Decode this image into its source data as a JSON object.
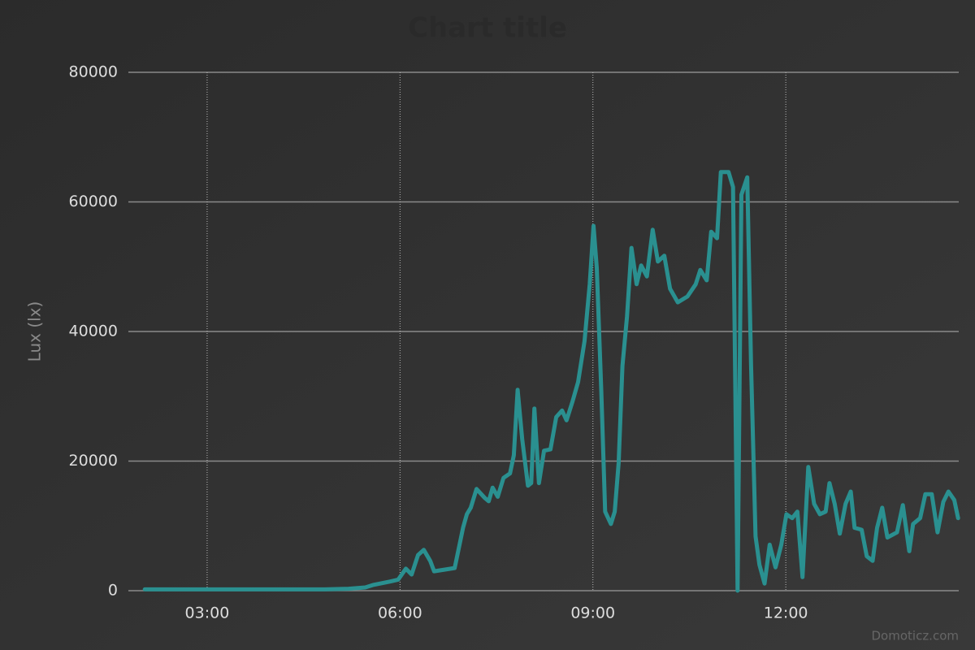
{
  "chart_data": {
    "type": "line",
    "title": "Chart title",
    "y_label": "Lux (lx)",
    "watermark": "Domoticz.com",
    "grid": true,
    "xlim": [
      1.775,
      14.69
    ],
    "xticks": [
      {
        "value": 3,
        "label": "03:00"
      },
      {
        "value": 6,
        "label": "06:00"
      },
      {
        "value": 9,
        "label": "09:00"
      },
      {
        "value": 12,
        "label": "12:00"
      }
    ],
    "ylim": [
      0,
      80000
    ],
    "yticks": [
      0,
      20000,
      40000,
      60000,
      80000
    ],
    "series": [
      {
        "name": "Lux",
        "color": "#2a9090",
        "x": [
          2.03,
          4.83,
          5.2,
          5.46,
          5.59,
          5.84,
          5.97,
          6.09,
          6.18,
          6.28,
          6.37,
          6.47,
          6.53,
          6.85,
          6.98,
          7.04,
          7.1,
          7.19,
          7.32,
          7.38,
          7.44,
          7.52,
          7.61,
          7.71,
          7.77,
          7.83,
          7.9,
          7.99,
          8.04,
          8.09,
          8.16,
          8.24,
          8.34,
          8.43,
          8.52,
          8.59,
          8.68,
          8.77,
          8.87,
          8.95,
          9.01,
          9.06,
          9.13,
          9.19,
          9.28,
          9.34,
          9.4,
          9.46,
          9.53,
          9.6,
          9.68,
          9.75,
          9.84,
          9.93,
          10.01,
          10.11,
          10.2,
          10.32,
          10.47,
          10.6,
          10.67,
          10.77,
          10.84,
          10.93,
          10.99,
          11.11,
          11.18,
          11.25,
          11.31,
          11.4,
          11.46,
          11.53,
          11.59,
          11.67,
          11.75,
          11.84,
          11.93,
          12.01,
          12.1,
          12.18,
          12.26,
          12.35,
          12.44,
          12.53,
          12.62,
          12.68,
          12.76,
          12.84,
          12.93,
          13.01,
          13.07,
          13.18,
          13.26,
          13.35,
          13.42,
          13.5,
          13.58,
          13.73,
          13.82,
          13.92,
          13.98,
          14.09,
          14.17,
          14.27,
          14.36,
          14.45,
          14.53,
          14.62,
          14.68
        ],
        "values": [
          200,
          200,
          300,
          500,
          900,
          1400,
          1700,
          3400,
          2500,
          5500,
          6300,
          4600,
          3000,
          3500,
          9700,
          11800,
          12800,
          15700,
          14300,
          13800,
          15900,
          14500,
          17400,
          18100,
          20900,
          31000,
          23400,
          16200,
          16600,
          28100,
          16600,
          21600,
          21800,
          26800,
          27800,
          26300,
          29100,
          32200,
          38500,
          47300,
          56300,
          49800,
          31000,
          12200,
          10300,
          12200,
          19700,
          34700,
          42300,
          52900,
          47300,
          50200,
          48500,
          55700,
          50800,
          51700,
          46600,
          44500,
          45400,
          47300,
          49500,
          47900,
          55400,
          54400,
          64600,
          64600,
          62300,
          0,
          61100,
          63800,
          34700,
          8400,
          4000,
          1100,
          7100,
          3600,
          7100,
          11800,
          11200,
          12200,
          2100,
          19100,
          13400,
          11800,
          12200,
          16600,
          13400,
          8800,
          13400,
          15300,
          9700,
          9400,
          5300,
          4600,
          9700,
          12800,
          8200,
          9000,
          13200,
          6100,
          10300,
          11200,
          14900,
          14900,
          9000,
          13700,
          15300,
          14000,
          11200
        ]
      }
    ]
  }
}
